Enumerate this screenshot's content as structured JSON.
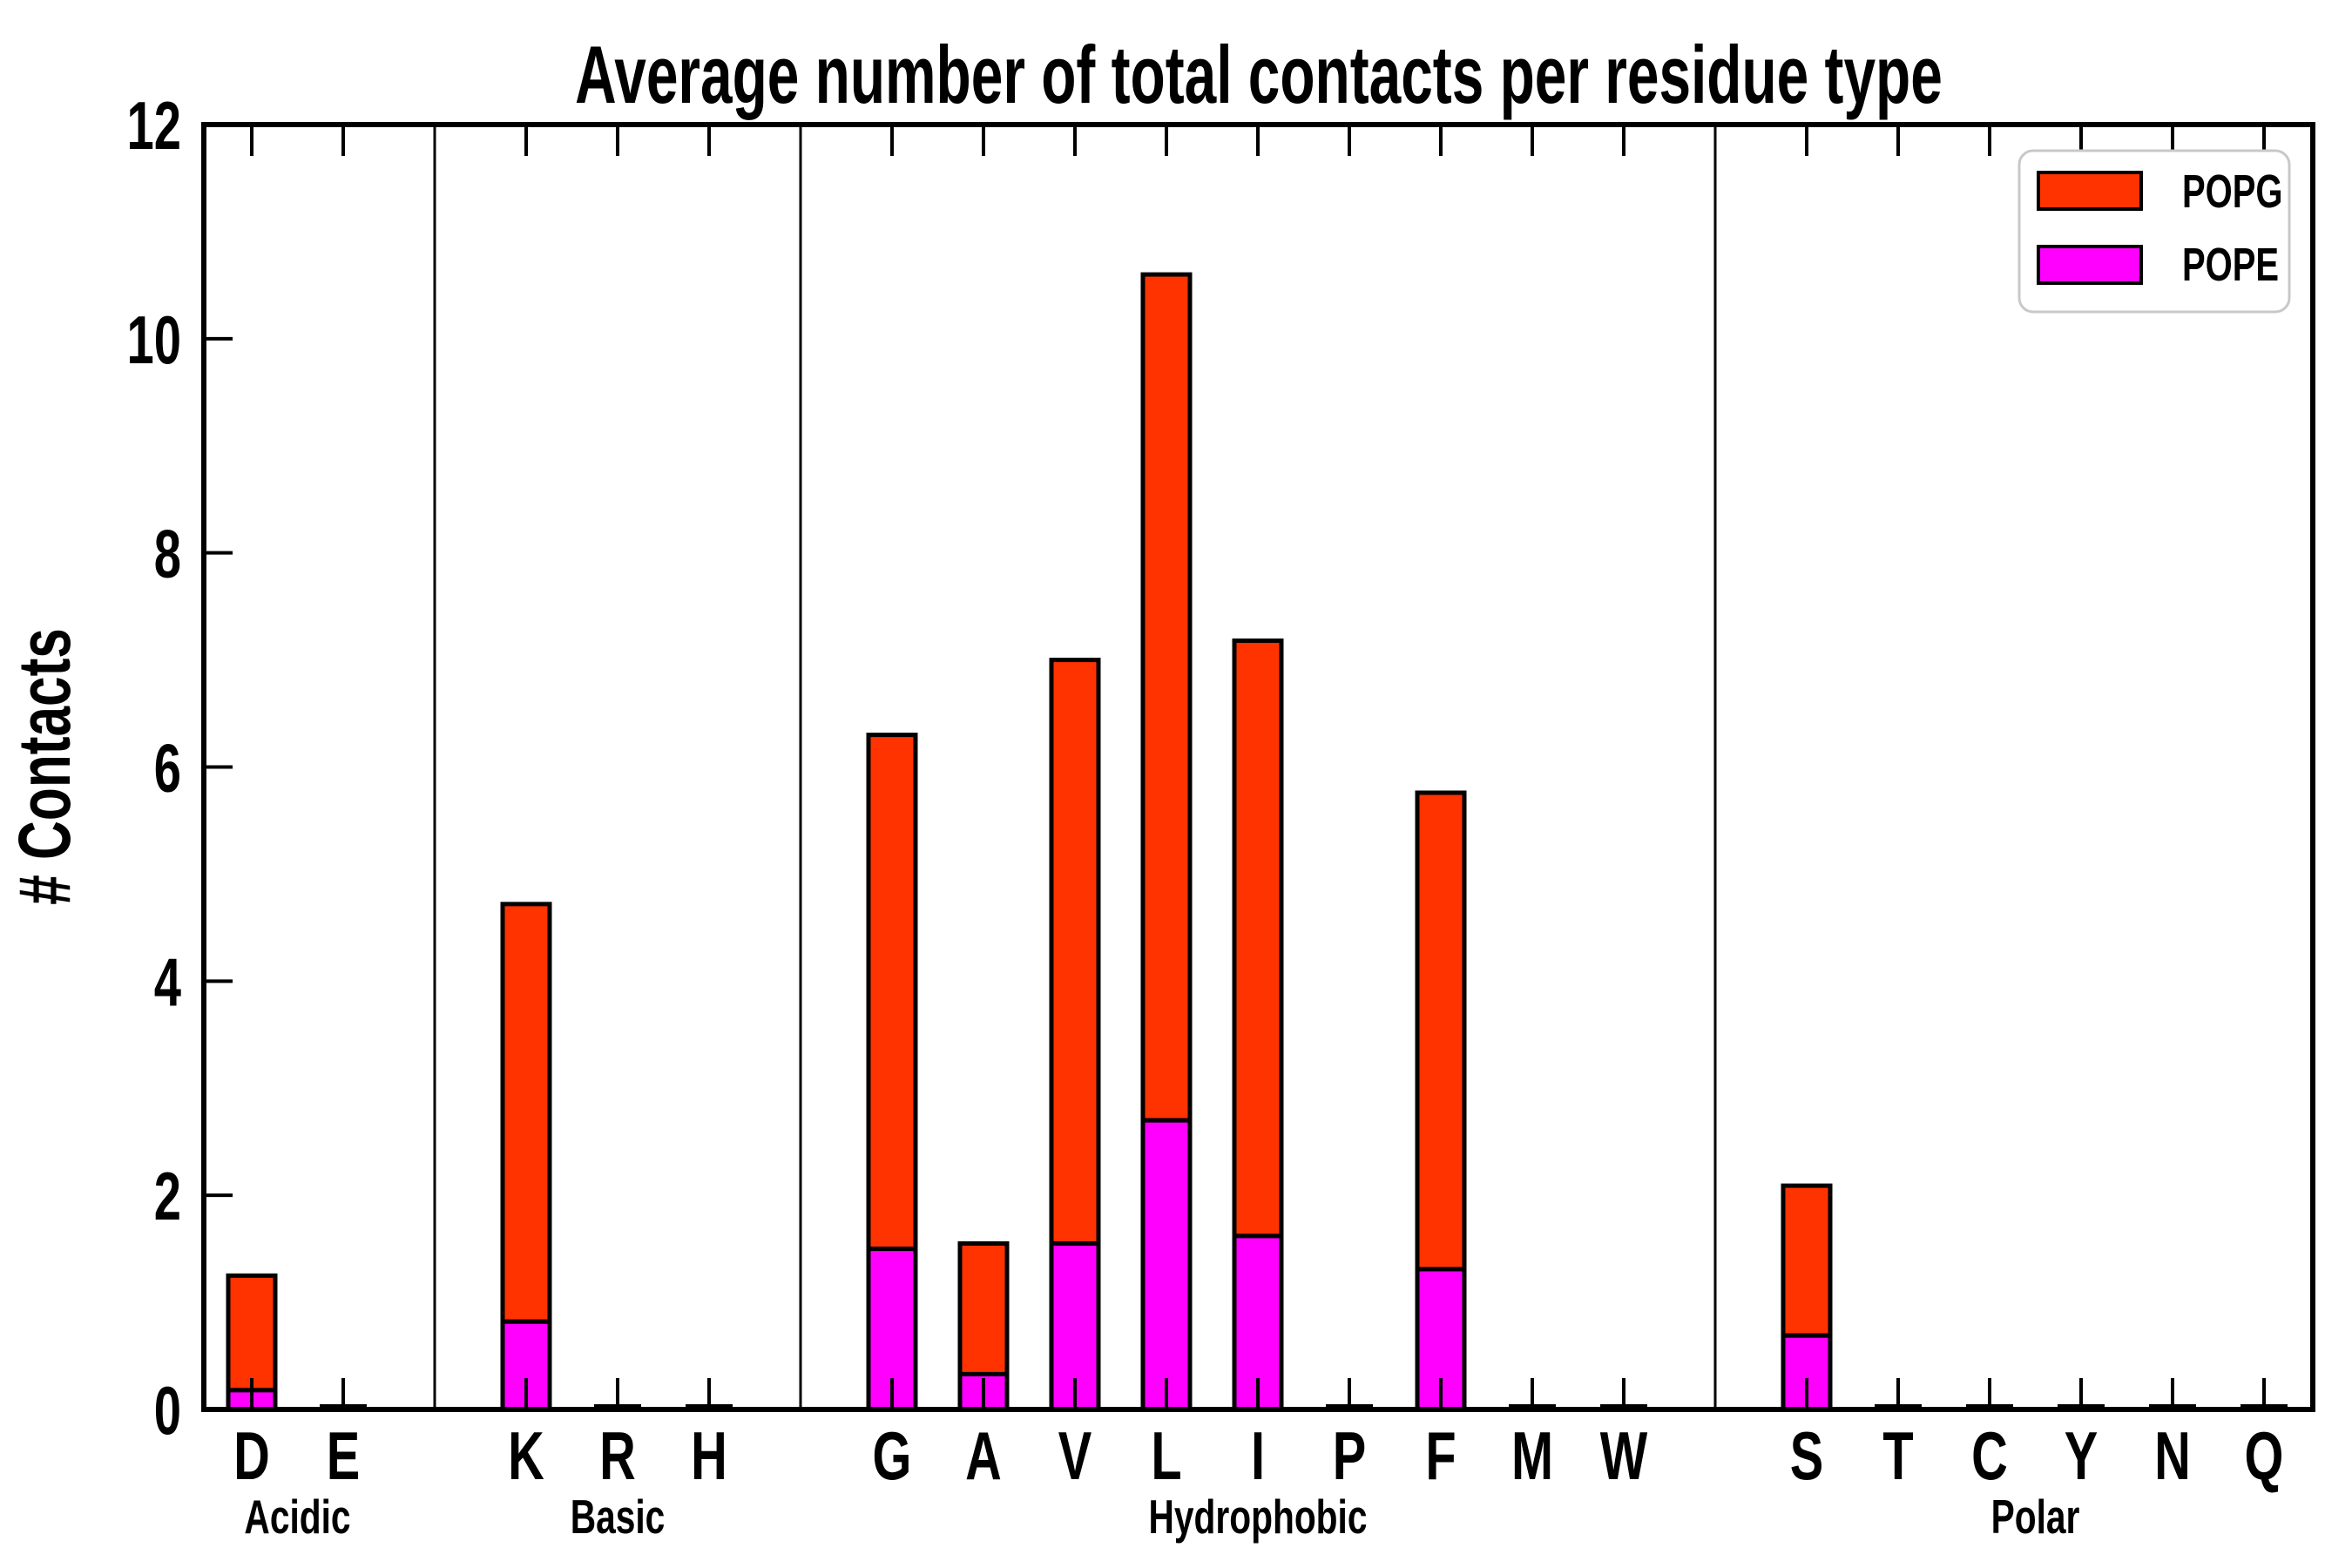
{
  "title": "Average number of total contacts per residue type",
  "ylabel": "# Contacts",
  "chart_data": {
    "type": "bar",
    "stacked": true,
    "title": "Average number of total contacts per residue type",
    "xlabel": "",
    "ylabel": "# Contacts",
    "ylim": [
      0,
      12
    ],
    "yticks": [
      0,
      2,
      4,
      6,
      8,
      10,
      12
    ],
    "grid": false,
    "background": "#ffffff",
    "axis_color": "#000000",
    "legend": {
      "position": "upper-right",
      "entries": [
        {
          "label": "POPG",
          "color": "#ff3300"
        },
        {
          "label": "POPE",
          "color": "#ff00ff"
        }
      ]
    },
    "groups": [
      {
        "label": "Acidic",
        "categories": [
          "D",
          "E"
        ]
      },
      {
        "label": "Basic",
        "categories": [
          "K",
          "R",
          "H"
        ]
      },
      {
        "label": "Hydrophobic",
        "categories": [
          "G",
          "A",
          "V",
          "L",
          "I",
          "P",
          "F",
          "M",
          "W"
        ]
      },
      {
        "label": "Polar",
        "categories": [
          "S",
          "T",
          "C",
          "Y",
          "N",
          "Q"
        ]
      }
    ],
    "categories": [
      "D",
      "E",
      "K",
      "R",
      "H",
      "G",
      "A",
      "V",
      "L",
      "I",
      "P",
      "F",
      "M",
      "W",
      "S",
      "T",
      "C",
      "Y",
      "N",
      "Q"
    ],
    "series": [
      {
        "name": "POPE",
        "color": "#ff00ff",
        "values": [
          0.18,
          0,
          0.82,
          0,
          0,
          1.5,
          0.33,
          1.55,
          2.7,
          1.62,
          0,
          1.31,
          0,
          0,
          0.69,
          0,
          0,
          0,
          0,
          0
        ]
      },
      {
        "name": "POPG",
        "color": "#ff3300",
        "values": [
          1.07,
          0.03,
          3.9,
          0.03,
          0.03,
          4.8,
          1.22,
          5.45,
          7.9,
          5.56,
          0.03,
          4.45,
          0.03,
          0.03,
          1.4,
          0.03,
          0.03,
          0.03,
          0.03,
          0.03
        ]
      }
    ],
    "totals": [
      1.25,
      0.03,
      4.72,
      0.03,
      0.03,
      6.3,
      1.55,
      7.0,
      10.6,
      7.18,
      0.03,
      5.76,
      0.03,
      0.03,
      2.09,
      0.03,
      0.03,
      0.03,
      0.03,
      0.03
    ]
  }
}
